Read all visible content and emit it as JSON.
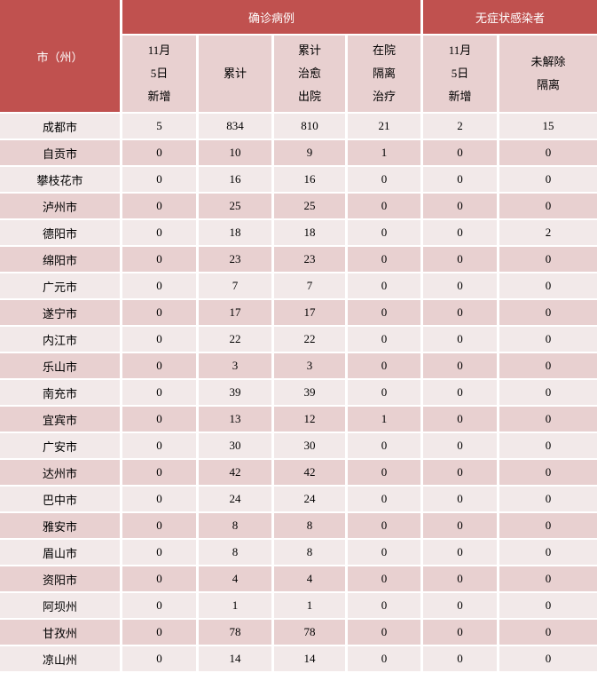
{
  "colors": {
    "header_bg": "#c0514f",
    "header_text": "#ffffff",
    "subheader_bg": "#e8d0d0",
    "row_light_bg": "#f2e9e9",
    "row_dark_bg": "#e8d0d0",
    "divider": "#ffffff",
    "cell_text": "#000000"
  },
  "chart_data": {
    "type": "table",
    "header": {
      "corner": "市（州）",
      "groups": [
        {
          "label": "确诊病例",
          "colspan": 4
        },
        {
          "label": "无症状感染者",
          "colspan": 2
        }
      ],
      "sub_columns": [
        "11月\n5日\n新增",
        "累计",
        "累计\n治愈\n出院",
        "在院\n隔离\n治疗",
        "11月\n5日\n新增",
        "未解除\n隔离"
      ]
    },
    "columns_flat": [
      "市（州）",
      "确诊病例-11月5日新增",
      "确诊病例-累计",
      "确诊病例-累计治愈出院",
      "确诊病例-在院隔离治疗",
      "无症状感染者-11月5日新增",
      "无症状感染者-未解除隔离"
    ],
    "rows": [
      {
        "city": "成都市",
        "values": [
          5,
          834,
          810,
          21,
          2,
          15
        ]
      },
      {
        "city": "自贡市",
        "values": [
          0,
          10,
          9,
          1,
          0,
          0
        ]
      },
      {
        "city": "攀枝花市",
        "values": [
          0,
          16,
          16,
          0,
          0,
          0
        ]
      },
      {
        "city": "泸州市",
        "values": [
          0,
          25,
          25,
          0,
          0,
          0
        ]
      },
      {
        "city": "德阳市",
        "values": [
          0,
          18,
          18,
          0,
          0,
          2
        ]
      },
      {
        "city": "绵阳市",
        "values": [
          0,
          23,
          23,
          0,
          0,
          0
        ]
      },
      {
        "city": "广元市",
        "values": [
          0,
          7,
          7,
          0,
          0,
          0
        ]
      },
      {
        "city": "遂宁市",
        "values": [
          0,
          17,
          17,
          0,
          0,
          0
        ]
      },
      {
        "city": "内江市",
        "values": [
          0,
          22,
          22,
          0,
          0,
          0
        ]
      },
      {
        "city": "乐山市",
        "values": [
          0,
          3,
          3,
          0,
          0,
          0
        ]
      },
      {
        "city": "南充市",
        "values": [
          0,
          39,
          39,
          0,
          0,
          0
        ]
      },
      {
        "city": "宜宾市",
        "values": [
          0,
          13,
          12,
          1,
          0,
          0
        ]
      },
      {
        "city": "广安市",
        "values": [
          0,
          30,
          30,
          0,
          0,
          0
        ]
      },
      {
        "city": "达州市",
        "values": [
          0,
          42,
          42,
          0,
          0,
          0
        ]
      },
      {
        "city": "巴中市",
        "values": [
          0,
          24,
          24,
          0,
          0,
          0
        ]
      },
      {
        "city": "雅安市",
        "values": [
          0,
          8,
          8,
          0,
          0,
          0
        ]
      },
      {
        "city": "眉山市",
        "values": [
          0,
          8,
          8,
          0,
          0,
          0
        ]
      },
      {
        "city": "资阳市",
        "values": [
          0,
          4,
          4,
          0,
          0,
          0
        ]
      },
      {
        "city": "阿坝州",
        "values": [
          0,
          1,
          1,
          0,
          0,
          0
        ]
      },
      {
        "city": "甘孜州",
        "values": [
          0,
          78,
          78,
          0,
          0,
          0
        ]
      },
      {
        "city": "凉山州",
        "values": [
          0,
          14,
          14,
          0,
          0,
          0
        ]
      }
    ]
  }
}
